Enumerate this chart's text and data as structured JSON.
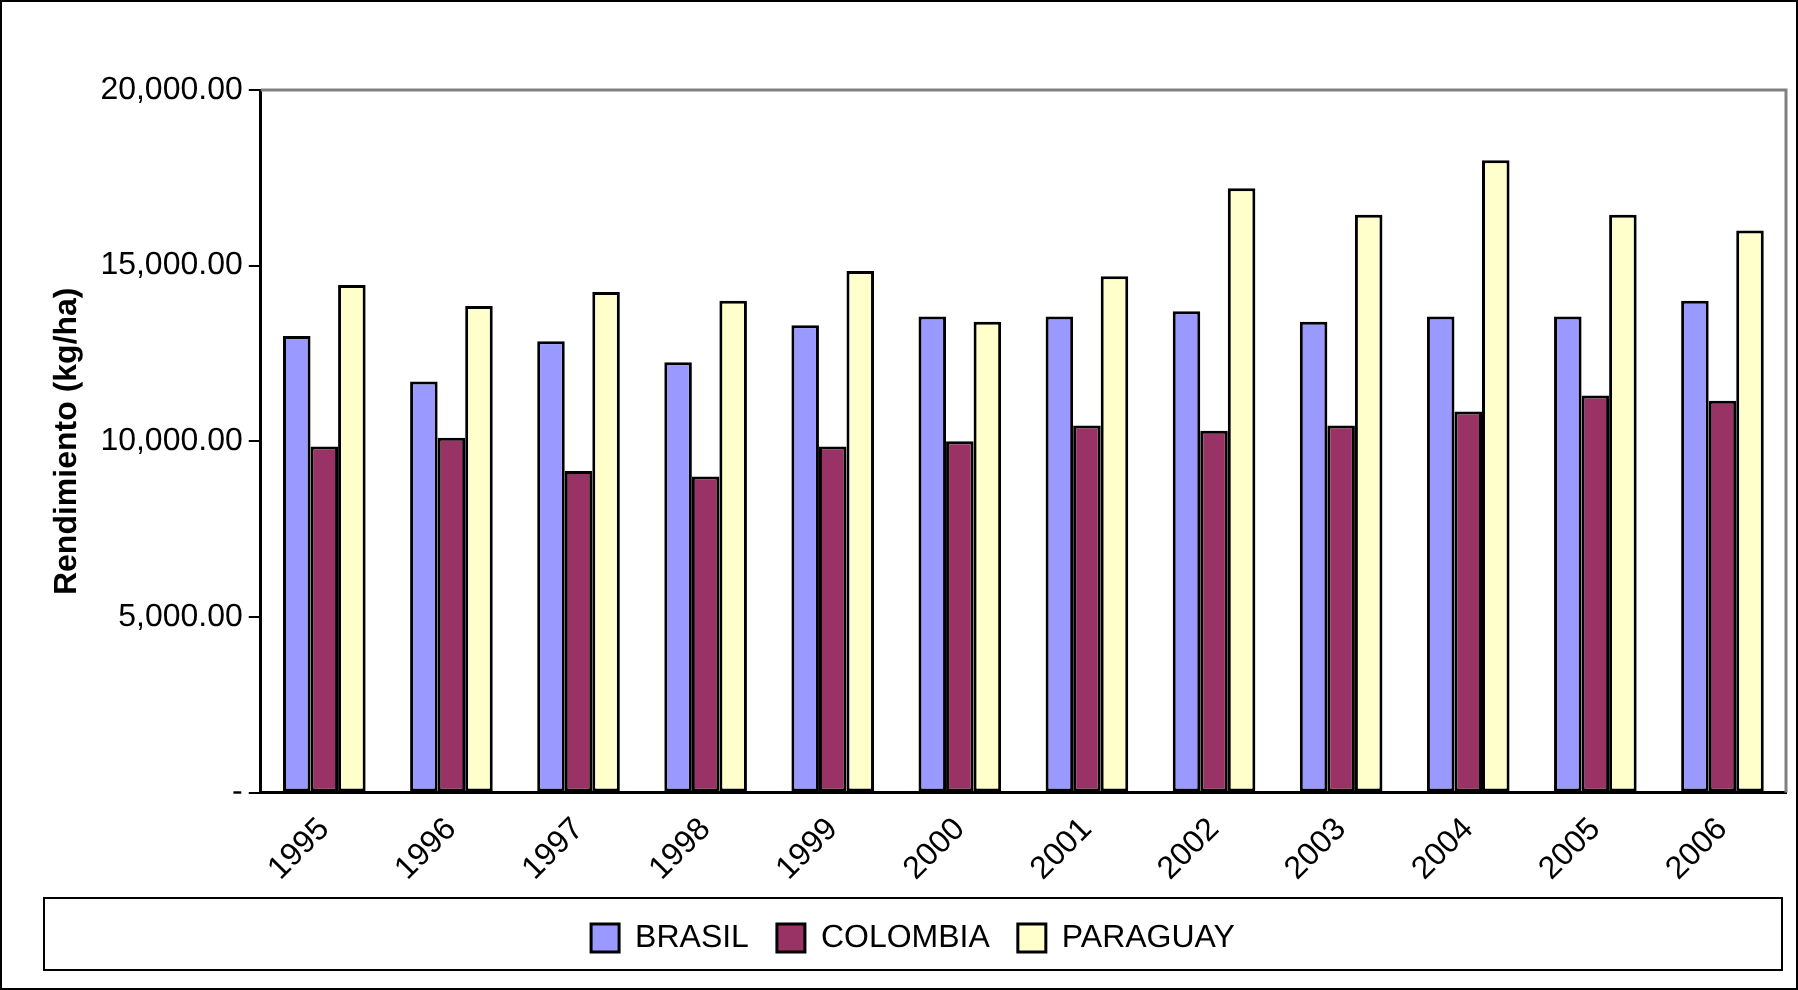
{
  "chart_data": {
    "type": "bar",
    "ylabel": "Rendimiento (kg/ha)",
    "categories": [
      "1995",
      "1996",
      "1997",
      "1998",
      "1999",
      "2000",
      "2001",
      "2002",
      "2003",
      "2004",
      "2005",
      "2006"
    ],
    "series": [
      {
        "name": "BRASIL",
        "color": "#9999ff",
        "values": [
          13000,
          11700,
          12850,
          12250,
          13300,
          13550,
          13550,
          13700,
          13400,
          13550,
          13550,
          14000
        ]
      },
      {
        "name": "COLOMBIA",
        "color": "#993366",
        "values": [
          9850,
          10100,
          9150,
          9000,
          9850,
          10000,
          10450,
          10300,
          10450,
          10850,
          11300,
          11150
        ]
      },
      {
        "name": "PARAGUAY",
        "color": "#ffffcc",
        "values": [
          14450,
          13850,
          14250,
          14000,
          14850,
          13400,
          14700,
          17200,
          16450,
          18000,
          16450,
          16000
        ]
      }
    ],
    "ylim": [
      0,
      20000
    ],
    "yticks": [
      {
        "value": 0,
        "label": "-"
      },
      {
        "value": 5000,
        "label": "5,000.00"
      },
      {
        "value": 10000,
        "label": "10,000.00"
      },
      {
        "value": 15000,
        "label": "15,000.00"
      },
      {
        "value": 20000,
        "label": "20,000.00"
      }
    ],
    "grid": false,
    "legend": "bottom"
  }
}
